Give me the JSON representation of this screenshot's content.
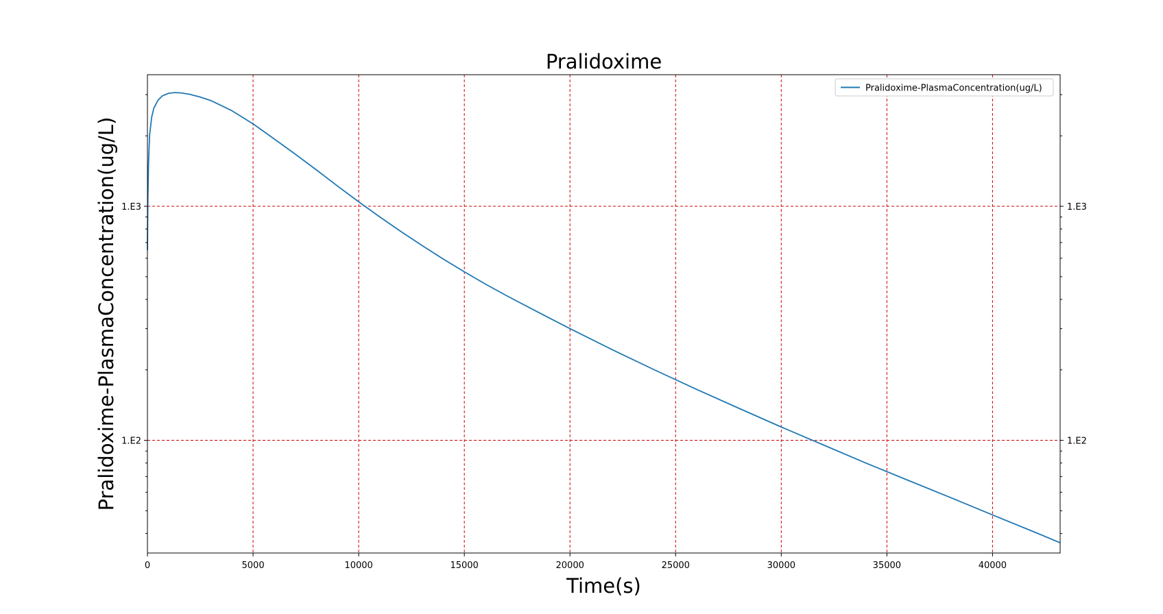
{
  "chart_data": {
    "type": "line",
    "title": "Pralidoxime",
    "xlabel": "Time(s)",
    "ylabel": "Pralidoxime-PlasmaConcentration(ug/L)",
    "x_scale": "linear",
    "y_scale": "log",
    "xlim": [
      0,
      43200
    ],
    "ylim": [
      33,
      3650
    ],
    "x_ticks": [
      0,
      5000,
      10000,
      15000,
      20000,
      25000,
      30000,
      35000,
      40000
    ],
    "x_tick_labels": [
      "0",
      "5000",
      "10000",
      "15000",
      "20000",
      "25000",
      "30000",
      "35000",
      "40000"
    ],
    "y_ticks": [
      100,
      1000
    ],
    "y_tick_labels": [
      "1.E2",
      "1.E3"
    ],
    "y_tick_labels_right": [
      "1.E2",
      "1.E3"
    ],
    "grid": true,
    "grid_color": "#cc0000",
    "legend_position": "top-right",
    "series": [
      {
        "name": "Pralidoxime-PlasmaConcentration(ug/L)",
        "color": "#1f77b4",
        "x": [
          0,
          20,
          50,
          100,
          200,
          300,
          500,
          700,
          1000,
          1300,
          1600,
          2000,
          2500,
          3000,
          4000,
          5000,
          6000,
          7000,
          8000,
          9000,
          10000,
          11000,
          12000,
          13000,
          14000,
          15000,
          16000,
          17000,
          18000,
          19000,
          20000,
          22000,
          24000,
          26000,
          28000,
          30000,
          32000,
          34000,
          36000,
          38000,
          40000,
          42000,
          43200
        ],
        "y": [
          650,
          1050,
          1500,
          2000,
          2400,
          2620,
          2840,
          2960,
          3040,
          3060,
          3050,
          3010,
          2930,
          2830,
          2560,
          2250,
          1940,
          1670,
          1430,
          1220,
          1045,
          900,
          780,
          680,
          595,
          525,
          465,
          415,
          372,
          334,
          300,
          244,
          200,
          165,
          137,
          114,
          95.5,
          80,
          67.5,
          57,
          48,
          40.5,
          36.5
        ]
      }
    ]
  }
}
